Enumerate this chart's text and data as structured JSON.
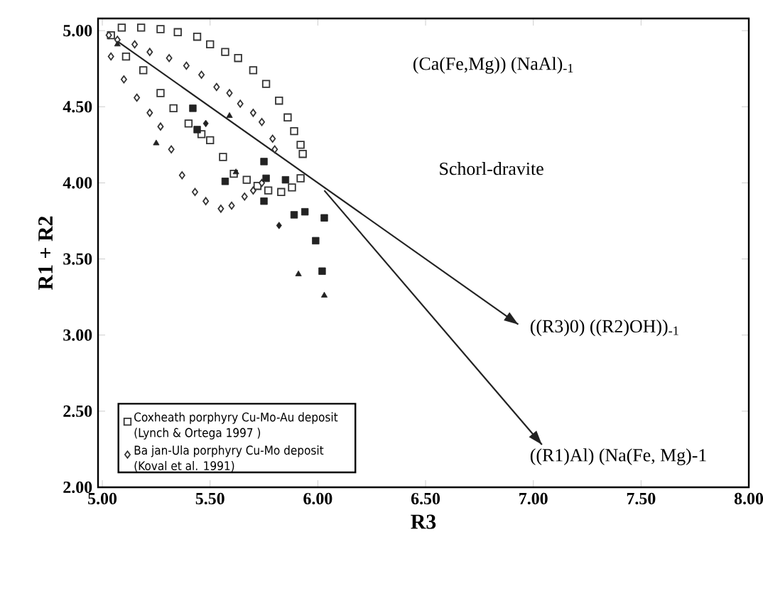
{
  "chart_data": {
    "type": "scatter",
    "xlabel": "R3",
    "ylabel": "R1 + R2",
    "xlim": [
      4.98,
      8.0
    ],
    "ylim": [
      2.0,
      5.08
    ],
    "xticks": [
      {
        "value": 5,
        "label": "5.00"
      },
      {
        "value": 5.5,
        "label": "5.50"
      },
      {
        "value": 6,
        "label": "6.00"
      },
      {
        "value": 6.5,
        "label": "6.50"
      },
      {
        "value": 7,
        "label": "7.00"
      },
      {
        "value": 7.5,
        "label": "7.50"
      },
      {
        "value": 8,
        "label": "8.00"
      }
    ],
    "yticks": [
      {
        "value": 2,
        "label": "2.00"
      },
      {
        "value": 2.5,
        "label": "2.50"
      },
      {
        "value": 3,
        "label": "3.00"
      },
      {
        "value": 3.5,
        "label": "3.50"
      },
      {
        "value": 4,
        "label": "4.00"
      },
      {
        "value": 4.5,
        "label": "4.50"
      },
      {
        "value": 5,
        "label": "5.00"
      }
    ],
    "legend": "bottom left",
    "series": [
      {
        "name": "Coxheath porphyry Cu-Mo-Au deposit (Lynch & Ortega 1997 )",
        "color": "#333333",
        "marker": "square",
        "x": [
          5.04,
          5.09,
          5.18,
          5.27,
          5.35,
          5.44,
          5.5,
          5.57,
          5.63,
          5.7,
          5.76,
          5.82,
          5.86,
          5.89,
          5.92,
          5.93,
          5.92,
          5.88,
          5.83,
          5.77,
          5.72,
          5.11,
          5.19,
          5.27,
          5.33,
          5.4,
          5.46,
          5.5,
          5.56,
          5.61,
          5.67
        ],
        "values": [
          4.97,
          5.02,
          5.02,
          5.01,
          4.99,
          4.96,
          4.91,
          4.86,
          4.82,
          4.74,
          4.65,
          4.54,
          4.43,
          4.34,
          4.25,
          4.19,
          4.03,
          3.97,
          3.94,
          3.95,
          3.98,
          4.83,
          4.74,
          4.59,
          4.49,
          4.39,
          4.32,
          4.28,
          4.17,
          4.06,
          4.02
        ]
      },
      {
        "name": "Ba jan-Ula porphyry Cu-Mo deposit (Koval et al. 1991)",
        "color": "#333333",
        "marker": "diamond",
        "x": [
          5.03,
          5.07,
          5.15,
          5.22,
          5.31,
          5.39,
          5.46,
          5.53,
          5.59,
          5.64,
          5.7,
          5.74,
          5.79,
          5.8,
          5.04,
          5.1,
          5.16,
          5.22,
          5.27,
          5.32,
          5.37,
          5.43,
          5.48,
          5.55,
          5.6,
          5.66,
          5.7,
          5.74
        ],
        "values": [
          4.97,
          4.94,
          4.91,
          4.86,
          4.82,
          4.77,
          4.71,
          4.63,
          4.59,
          4.52,
          4.46,
          4.4,
          4.29,
          4.22,
          4.83,
          4.68,
          4.56,
          4.46,
          4.37,
          4.22,
          4.05,
          3.94,
          3.88,
          3.83,
          3.85,
          3.91,
          3.95,
          4.0
        ]
      },
      {
        "color": "#222222",
        "marker": "square",
        "x": [
          5.42,
          5.44,
          5.57,
          5.75,
          5.76,
          5.85,
          5.75,
          5.89,
          5.94,
          6.03,
          5.99,
          6.02
        ],
        "values": [
          4.49,
          4.35,
          4.01,
          4.14,
          4.03,
          4.02,
          3.88,
          3.79,
          3.81,
          3.77,
          3.62,
          3.42
        ]
      },
      {
        "color": "#222222",
        "marker": "triangle",
        "x": [
          5.07,
          5.59,
          5.25,
          5.62,
          5.91,
          6.03
        ],
        "values": [
          4.91,
          4.44,
          4.26,
          4.07,
          3.4,
          3.26
        ]
      },
      {
        "color": "#222222",
        "marker": "diamond",
        "x": [
          5.82,
          5.48
        ],
        "values": [
          3.72,
          4.39
        ]
      },
      {
        "type": "line",
        "color": "#222222",
        "x": [
          5.07,
          6.93
        ],
        "values": [
          4.93,
          3.07
        ]
      },
      {
        "type": "line",
        "color": "#222222",
        "x": [
          6.03,
          7.04
        ],
        "values": [
          3.95,
          2.28
        ]
      }
    ],
    "annotations": [
      "(Ca(Fe,Mg)) (NaAl)$_{-1}$",
      "Schorl-dravite",
      "((R3)0) ((R2)OH))$_{-1}$",
      "((R1)Al) (Na(Fe, Mg)-1"
    ]
  }
}
